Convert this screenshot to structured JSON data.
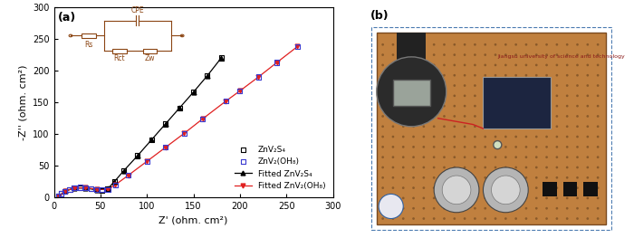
{
  "chart_data": {
    "type": "scatter",
    "label": "(a)",
    "x_label": "Z' (ohm. cm²)",
    "y_label": "-Z'' (ohm. cm²)",
    "xlim": [
      0,
      300
    ],
    "xticks": [
      0,
      50,
      100,
      150,
      200,
      250,
      300
    ],
    "ylim": [
      0,
      300
    ],
    "yticks": [
      0,
      50,
      100,
      150,
      200,
      250,
      300
    ],
    "grid": false,
    "legend": "lower right",
    "inset_labels": [
      "Rs",
      "CPE",
      "Rct",
      "Zw"
    ],
    "series": [
      {
        "name": "ZnV₂S₄",
        "type": "scatter",
        "color": "#000000",
        "marker": "square",
        "x": [
          5,
          8,
          12,
          17,
          22,
          28,
          34,
          40,
          46,
          52,
          58,
          65,
          75,
          90,
          105,
          120,
          135,
          150,
          165,
          180
        ],
        "values": [
          2,
          6,
          10,
          13,
          15,
          15.5,
          15,
          13.5,
          12,
          11,
          14,
          25,
          42,
          66,
          91,
          116,
          141,
          166,
          192,
          220
        ]
      },
      {
        "name": "ZnV₂(OH₈)",
        "type": "scatter",
        "color": "#3a3ad0",
        "marker": "square",
        "x": [
          5,
          8,
          12,
          17,
          22,
          28,
          34,
          40,
          46,
          52,
          58,
          66,
          80,
          100,
          120,
          140,
          160,
          185,
          200,
          220,
          240,
          262
        ],
        "values": [
          2,
          6,
          10,
          13,
          15,
          16,
          15.5,
          14.5,
          13,
          12,
          13,
          20,
          35,
          57,
          79,
          101,
          124,
          152,
          168,
          190,
          213,
          238
        ]
      },
      {
        "name": "Fitted ZnV₂S₄",
        "type": "line",
        "color": "#000000",
        "marker": "triangle_up",
        "line_style": "solid",
        "x": [
          5,
          12,
          22,
          34,
          46,
          58,
          65,
          75,
          90,
          105,
          120,
          135,
          150,
          165,
          180
        ],
        "values": [
          2,
          10,
          15,
          15,
          12,
          14,
          25,
          42,
          66,
          91,
          116,
          141,
          166,
          192,
          220
        ]
      },
      {
        "name": "Fitted ZnV₂(OH₈)",
        "type": "line",
        "color": "#e02020",
        "marker": "triangle_down",
        "line_style": "solid",
        "x": [
          5,
          12,
          22,
          34,
          46,
          58,
          66,
          80,
          100,
          120,
          140,
          160,
          185,
          200,
          220,
          240,
          262
        ],
        "values": [
          2,
          10,
          15,
          15.5,
          13,
          13,
          20,
          35,
          57,
          79,
          101,
          124,
          152,
          168,
          190,
          213,
          238
        ]
      }
    ]
  },
  "photo": {
    "label": "(b)",
    "caption": "Jiangsu university of science and technology"
  }
}
